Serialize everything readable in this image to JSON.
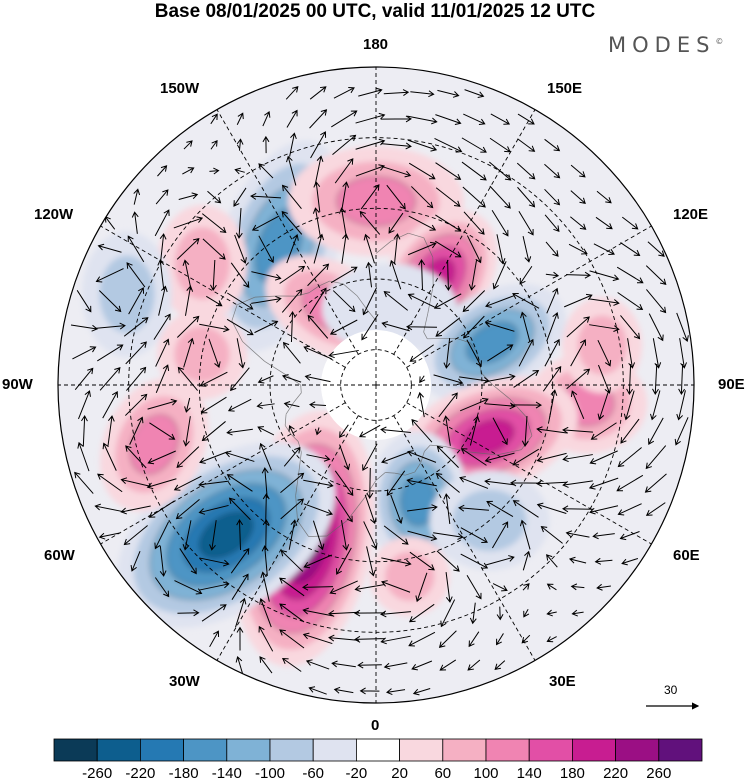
{
  "title": "Base 08/01/2025 00 UTC, valid 11/01/2025 12 UTC",
  "brand": "MODES",
  "brand_mark": "©",
  "longitude_labels": {
    "top": "180",
    "top_left": "150W",
    "top_right": "150E",
    "upper_left": "120W",
    "upper_right": "120E",
    "left": "90W",
    "right": "90E",
    "lower_left": "60W",
    "lower_right": "60E",
    "bottom_left": "30W",
    "bottom_right": "30E",
    "bottom": "0"
  },
  "vector_reference": "30",
  "colorbar": {
    "ticks": [
      "-260",
      "-220",
      "-180",
      "-140",
      "-100",
      "-60",
      "-20",
      "20",
      "60",
      "100",
      "140",
      "180",
      "220",
      "260"
    ],
    "colors": [
      "#0b3a57",
      "#0d5e8e",
      "#2579b3",
      "#4d95c5",
      "#7fb2d6",
      "#b3c9e2",
      "#dfe3f0",
      "#ffffff",
      "#f9d8df",
      "#f5b0c3",
      "#f084b2",
      "#e24fa6",
      "#c81d91",
      "#9b0f84",
      "#61117c"
    ]
  },
  "anomalies": [
    {
      "lon": -145,
      "lat": 42,
      "r": 58,
      "rx": 1.0,
      "ry": 1.9,
      "rot": 20,
      "level": -4
    },
    {
      "lon": 180,
      "lat": 38,
      "r": 55,
      "rx": 1.6,
      "ry": 1.0,
      "rot": 0,
      "level": 3
    },
    {
      "lon": 150,
      "lat": 55,
      "r": 50,
      "rx": 1.0,
      "ry": 1.5,
      "rot": 35,
      "level": 5
    },
    {
      "lon": 110,
      "lat": 55,
      "r": 50,
      "rx": 1.0,
      "ry": 1.6,
      "rot": 60,
      "level": -4
    },
    {
      "lon": 85,
      "lat": 30,
      "r": 50,
      "rx": 1.2,
      "ry": 1.0,
      "rot": 0,
      "level": 3
    },
    {
      "lon": 65,
      "lat": 55,
      "r": 55,
      "rx": 1.7,
      "ry": 1.0,
      "rot": -20,
      "level": 5
    },
    {
      "lon": 20,
      "lat": 55,
      "r": 50,
      "rx": 1.0,
      "ry": 1.4,
      "rot": 0,
      "level": -4
    },
    {
      "lon": -25,
      "lat": 42,
      "r": 68,
      "rx": 1.0,
      "ry": 1.9,
      "rot": 10,
      "level": 7
    },
    {
      "lon": -45,
      "lat": 30,
      "r": 68,
      "rx": 1.8,
      "ry": 1.1,
      "rot": -35,
      "level": -6
    },
    {
      "lon": -75,
      "lat": 25,
      "r": 50,
      "rx": 1.0,
      "ry": 1.4,
      "rot": 25,
      "level": 3
    },
    {
      "lon": -100,
      "lat": 40,
      "r": 45,
      "rx": 1.0,
      "ry": 1.0,
      "rot": 0,
      "level": 2
    },
    {
      "lon": -125,
      "lat": 30,
      "r": 45,
      "rx": 1.0,
      "ry": 1.3,
      "rot": 0,
      "level": 2
    },
    {
      "lon": -150,
      "lat": 65,
      "r": 45,
      "rx": 1.6,
      "ry": 1.0,
      "rot": 30,
      "level": 3
    },
    {
      "lon": 40,
      "lat": 40,
      "r": 50,
      "rx": 1.2,
      "ry": 1.0,
      "rot": 0,
      "level": -2
    },
    {
      "lon": 10,
      "lat": 35,
      "r": 40,
      "rx": 1.0,
      "ry": 1.0,
      "rot": 0,
      "level": 2
    },
    {
      "lon": -110,
      "lat": 15,
      "r": 45,
      "rx": 1.0,
      "ry": 1.4,
      "rot": 0,
      "level": -2
    },
    {
      "lon": 170,
      "lat": 68,
      "r": 45,
      "rx": 1.5,
      "ry": 1.0,
      "rot": 0,
      "level": -1
    },
    {
      "lon": 100,
      "lat": 25,
      "r": 40,
      "rx": 1.0,
      "ry": 1.2,
      "rot": 0,
      "level": 2
    }
  ]
}
